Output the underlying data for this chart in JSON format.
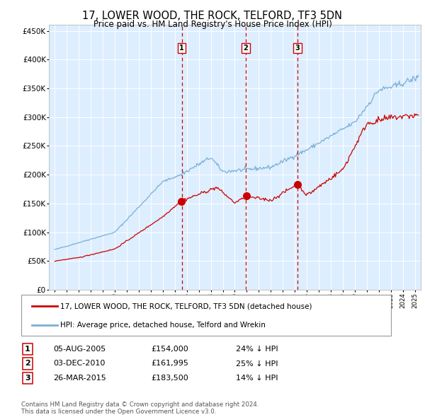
{
  "title": "17, LOWER WOOD, THE ROCK, TELFORD, TF3 5DN",
  "subtitle": "Price paid vs. HM Land Registry's House Price Index (HPI)",
  "hpi_color": "#7bafd4",
  "price_color": "#cc0000",
  "background_color": "#ddeeff",
  "ylim": [
    0,
    460000
  ],
  "yticks": [
    0,
    50000,
    100000,
    150000,
    200000,
    250000,
    300000,
    350000,
    400000,
    450000
  ],
  "xlim_start": 1994.5,
  "xlim_end": 2025.5,
  "transactions": [
    {
      "date_label": "05-AUG-2005",
      "year": 2005.58,
      "price": 154000,
      "pct": "24%",
      "num": 1
    },
    {
      "date_label": "03-DEC-2010",
      "year": 2010.92,
      "price": 161995,
      "pct": "25%",
      "num": 2
    },
    {
      "date_label": "26-MAR-2015",
      "year": 2015.23,
      "price": 183500,
      "pct": "14%",
      "num": 3
    }
  ],
  "legend_property_label": "17, LOWER WOOD, THE ROCK, TELFORD, TF3 5DN (detached house)",
  "legend_hpi_label": "HPI: Average price, detached house, Telford and Wrekin",
  "footnote": "Contains HM Land Registry data © Crown copyright and database right 2024.\nThis data is licensed under the Open Government Licence v3.0."
}
